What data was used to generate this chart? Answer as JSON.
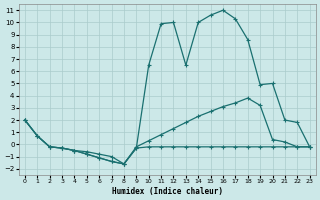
{
  "xlabel": "Humidex (Indice chaleur)",
  "bg_color": "#cce8e8",
  "grid_color": "#aacccc",
  "line_color": "#1a7070",
  "xlim": [
    -0.5,
    23.5
  ],
  "ylim": [
    -2.5,
    11.5
  ],
  "xticks": [
    0,
    1,
    2,
    3,
    4,
    5,
    6,
    7,
    8,
    9,
    10,
    11,
    12,
    13,
    14,
    15,
    16,
    17,
    18,
    19,
    20,
    21,
    22,
    23
  ],
  "yticks": [
    -2,
    -1,
    0,
    1,
    2,
    3,
    4,
    5,
    6,
    7,
    8,
    9,
    10,
    11
  ],
  "curve1_x": [
    0,
    1,
    2,
    3,
    4,
    5,
    6,
    7,
    8,
    9,
    10,
    11,
    12,
    13,
    14,
    15,
    16,
    17,
    18,
    19,
    20,
    21,
    22,
    23
  ],
  "curve1_y": [
    2.0,
    0.7,
    -0.2,
    -0.3,
    -0.5,
    -0.8,
    -1.1,
    -1.4,
    -1.6,
    -0.3,
    6.5,
    9.9,
    10.0,
    6.5,
    10.0,
    10.6,
    11.0,
    10.3,
    8.6,
    4.9,
    5.0,
    2.0,
    1.8,
    -0.2
  ],
  "curve2_x": [
    0,
    1,
    2,
    3,
    4,
    5,
    6,
    7,
    8,
    9,
    10,
    11,
    12,
    13,
    14,
    15,
    16,
    17,
    18,
    19,
    20,
    21,
    22,
    23
  ],
  "curve2_y": [
    2.0,
    0.7,
    -0.2,
    -0.3,
    -0.5,
    -0.6,
    -0.8,
    -1.0,
    -1.6,
    -0.2,
    0.3,
    0.8,
    1.3,
    1.8,
    2.3,
    2.7,
    3.1,
    3.4,
    3.8,
    3.2,
    0.4,
    0.2,
    -0.2,
    -0.2
  ],
  "curve3_x": [
    0,
    1,
    2,
    3,
    4,
    5,
    6,
    7,
    8,
    9,
    10,
    11,
    12,
    13,
    14,
    15,
    16,
    17,
    18,
    19,
    20,
    21,
    22,
    23
  ],
  "curve3_y": [
    2.0,
    0.7,
    -0.2,
    -0.3,
    -0.5,
    -0.8,
    -1.1,
    -1.4,
    -1.6,
    -0.3,
    -0.2,
    -0.2,
    -0.2,
    -0.2,
    -0.2,
    -0.2,
    -0.2,
    -0.2,
    -0.2,
    -0.2,
    -0.2,
    -0.2,
    -0.2,
    -0.2
  ]
}
